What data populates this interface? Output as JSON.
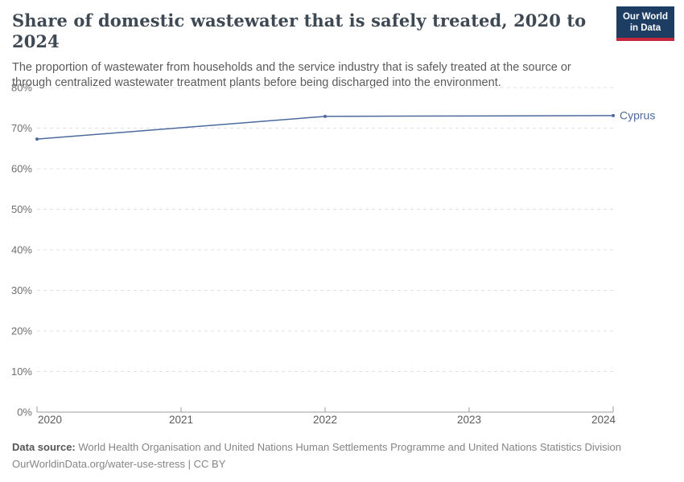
{
  "header": {
    "title": "Share of domestic wastewater that is safely treated, 2020 to 2024",
    "subtitle": "The proportion of wastewater from households and the service industry that is safely treated at the source or through centralized wastewater treatment plants before being discharged into the environment."
  },
  "logo": {
    "line1": "Our World",
    "line2": "in Data",
    "bg_color": "#1d3d63",
    "accent_color": "#c72641"
  },
  "chart_data": {
    "type": "line",
    "title": "Share of domestic wastewater that is safely treated, 2020 to 2024",
    "x": [
      2020,
      2022,
      2023,
      2024
    ],
    "series": [
      {
        "name": "Cyprus",
        "values": [
          67.3,
          72.9,
          73.0,
          73.1
        ],
        "color": "#4c6a9c",
        "marker_x": [
          2020,
          2022,
          2024
        ]
      }
    ],
    "x_ticks": [
      2020,
      2021,
      2022,
      2023,
      2024
    ],
    "y_ticks": [
      0,
      10,
      20,
      30,
      40,
      50,
      60,
      70,
      80
    ],
    "y_tick_suffix": "%",
    "xlim": [
      2020,
      2024
    ],
    "ylim": [
      0,
      80
    ],
    "grid": "horizontal-dashed",
    "legend_position": "end-of-line-label",
    "colors": {
      "gridline": "#e0e0e0",
      "axis_line": "#9e9e9e",
      "y_label": "#6e6e6e",
      "x_label": "#5b5b5b"
    }
  },
  "footer": {
    "datasource_label": "Data source:",
    "datasource_text": " World Health Organisation and United Nations Human Settlements Programme and United Nations Statistics Division",
    "url_text": "OurWorldinData.org/water-use-stress",
    "license_text": " | CC BY"
  }
}
